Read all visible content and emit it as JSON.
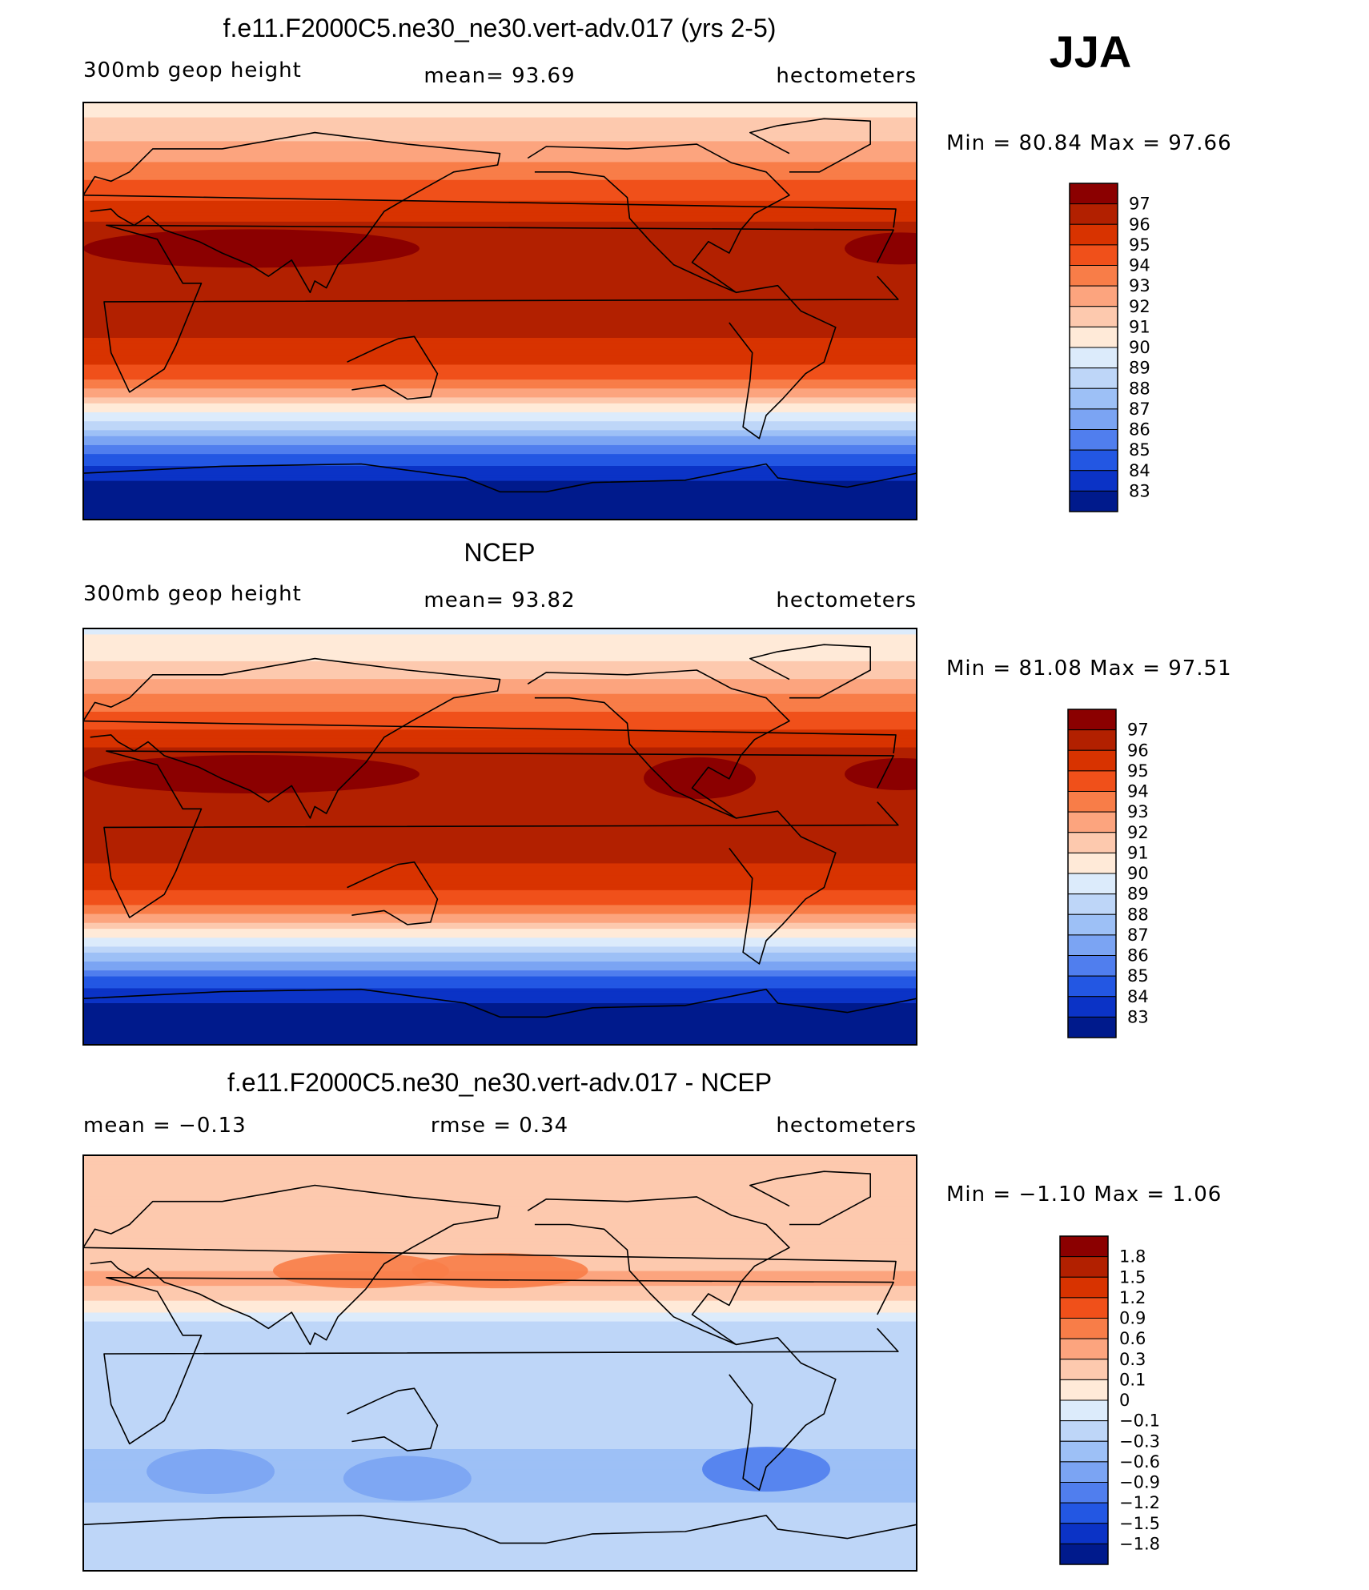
{
  "season": "JJA",
  "panels": [
    {
      "id": "model",
      "title": "f.e11.F2000C5.ne30_ne30.vert-adv.017 (yrs 2-5)",
      "left_label": "300mb  geop  height",
      "center_label": "mean=   93.69",
      "right_label": "hectometers",
      "minmax": "Min  =    80.84  Max  =    97.66",
      "colorbar": {
        "labels": [
          "97",
          "96",
          "95",
          "94",
          "93",
          "92",
          "91",
          "90",
          "89",
          "88",
          "87",
          "86",
          "85",
          "84",
          "83"
        ],
        "colors": [
          "#8B0000",
          "#B22000",
          "#D83300",
          "#F0501A",
          "#F87D48",
          "#FCA47E",
          "#FDC9AE",
          "#FFEAD8",
          "#DCEBFB",
          "#BED6F8",
          "#9DC0F6",
          "#7BA4F3",
          "#507EEE",
          "#2357E3",
          "#0B33C6",
          "#001A8C"
        ]
      },
      "chart_data": {
        "type": "heatmap",
        "title": "f.e11.F2000C5.ne30_ne30.vert-adv.017 (yrs 2-5)",
        "variable": "300mb  geop  height",
        "units": "hectometers",
        "mean": 93.69,
        "min": 80.84,
        "max": 97.66,
        "levels": [
          83,
          84,
          85,
          86,
          87,
          88,
          89,
          90,
          91,
          92,
          93,
          94,
          95,
          96,
          97
        ],
        "colors_low_to_high": [
          "#001A8C",
          "#0B33C6",
          "#2357E3",
          "#507EEE",
          "#7BA4F3",
          "#9DC0F6",
          "#BED6F8",
          "#DCEBFB",
          "#FFEAD8",
          "#FDC9AE",
          "#FCA47E",
          "#F87D48",
          "#F0501A",
          "#D83300",
          "#B22000",
          "#8B0000"
        ],
        "colorbar_labels": [
          "97",
          "96",
          "95",
          "94",
          "93",
          "92",
          "91",
          "90",
          "89",
          "88",
          "87",
          "86",
          "85",
          "84",
          "83"
        ],
        "profile_lat": [
          90,
          80,
          70,
          60,
          50,
          40,
          30,
          20,
          10,
          0,
          -10,
          -20,
          -30,
          -40,
          -50,
          -60,
          -70,
          -80,
          -90
        ],
        "profile_values": [
          90.6,
          91.2,
          92.3,
          93.6,
          94.8,
          95.9,
          96.5,
          96.6,
          96.6,
          96.4,
          96.1,
          95.5,
          94.0,
          91.0,
          88.3,
          85.3,
          83.3,
          82.3,
          81.5
        ],
        "map": "cylindrical equidistant, centered 180"
      }
    },
    {
      "id": "obs",
      "title": "NCEP",
      "left_label": "300mb  geop  height",
      "center_label": "mean=   93.82",
      "right_label": "hectometers",
      "minmax": "Min  =    81.08  Max  =    97.51",
      "colorbar": {
        "labels": [
          "97",
          "96",
          "95",
          "94",
          "93",
          "92",
          "91",
          "90",
          "89",
          "88",
          "87",
          "86",
          "85",
          "84",
          "83"
        ],
        "colors": [
          "#8B0000",
          "#B22000",
          "#D83300",
          "#F0501A",
          "#F87D48",
          "#FCA47E",
          "#FDC9AE",
          "#FFEAD8",
          "#DCEBFB",
          "#BED6F8",
          "#9DC0F6",
          "#7BA4F3",
          "#507EEE",
          "#2357E3",
          "#0B33C6",
          "#001A8C"
        ]
      },
      "chart_data": {
        "type": "heatmap",
        "title": "NCEP",
        "variable": "300mb  geop  height",
        "units": "hectometers",
        "mean": 93.82,
        "min": 81.08,
        "max": 97.51,
        "levels": [
          83,
          84,
          85,
          86,
          87,
          88,
          89,
          90,
          91,
          92,
          93,
          94,
          95,
          96,
          97
        ],
        "colors_low_to_high": [
          "#001A8C",
          "#0B33C6",
          "#2357E3",
          "#507EEE",
          "#7BA4F3",
          "#9DC0F6",
          "#BED6F8",
          "#DCEBFB",
          "#FFEAD8",
          "#FDC9AE",
          "#FCA47E",
          "#F87D48",
          "#F0501A",
          "#D83300",
          "#B22000",
          "#8B0000"
        ],
        "colorbar_labels": [
          "97",
          "96",
          "95",
          "94",
          "93",
          "92",
          "91",
          "90",
          "89",
          "88",
          "87",
          "86",
          "85",
          "84",
          "83"
        ],
        "profile_lat": [
          90,
          80,
          70,
          60,
          50,
          40,
          30,
          20,
          10,
          0,
          -10,
          -20,
          -30,
          -40,
          -50,
          -60,
          -70,
          -80,
          -90
        ],
        "profile_values": [
          89.8,
          90.5,
          91.8,
          93.2,
          94.6,
          95.9,
          96.9,
          96.8,
          96.6,
          96.4,
          96.1,
          95.5,
          94.0,
          91.0,
          88.2,
          85.2,
          83.2,
          82.2,
          81.3
        ],
        "map": "cylindrical equidistant, centered 180"
      }
    },
    {
      "id": "diff",
      "title": "f.e11.F2000C5.ne30_ne30.vert-adv.017 - NCEP",
      "left_label": "mean  =    −0.13",
      "center_label": "rmse  =     0.34",
      "right_label": "hectometers",
      "minmax": "Min  =    −1.10  Max  =      1.06",
      "colorbar": {
        "labels": [
          "1.8",
          "1.5",
          "1.2",
          "0.9",
          "0.6",
          "0.3",
          "0.1",
          "0",
          "−0.1",
          "−0.3",
          "−0.6",
          "−0.9",
          "−1.2",
          "−1.5",
          "−1.8"
        ],
        "colors": [
          "#8B0000",
          "#B22000",
          "#D83300",
          "#F0501A",
          "#F87D48",
          "#FCA47E",
          "#FDC9AE",
          "#FFEAD8",
          "#DCEBFB",
          "#BED6F8",
          "#9DC0F6",
          "#7BA4F3",
          "#507EEE",
          "#2357E3",
          "#0B33C6",
          "#001A8C"
        ]
      },
      "chart_data": {
        "type": "heatmap",
        "title": "f.e11.F2000C5.ne30_ne30.vert-adv.017 - NCEP",
        "units": "hectometers",
        "mean": -0.13,
        "rmse": 0.34,
        "min": -1.1,
        "max": 1.06,
        "levels": [
          -1.8,
          -1.5,
          -1.2,
          -0.9,
          -0.6,
          -0.3,
          -0.1,
          0,
          0.1,
          0.3,
          0.6,
          0.9,
          1.2,
          1.5,
          1.8
        ],
        "colors_low_to_high": [
          "#001A8C",
          "#0B33C6",
          "#2357E3",
          "#507EEE",
          "#7BA4F3",
          "#9DC0F6",
          "#BED6F8",
          "#DCEBFB",
          "#FFEAD8",
          "#FDC9AE",
          "#FCA47E",
          "#F87D48",
          "#F0501A",
          "#D83300",
          "#B22000",
          "#8B0000"
        ],
        "colorbar_labels": [
          "1.8",
          "1.5",
          "1.2",
          "0.9",
          "0.6",
          "0.3",
          "0.1",
          "0",
          "−0.1",
          "−0.3",
          "−0.6",
          "−0.9",
          "−1.2",
          "−1.5",
          "−1.8"
        ],
        "profile_lat": [
          90,
          75,
          60,
          45,
          35,
          25,
          15,
          0,
          -15,
          -30,
          -45,
          -60,
          -75,
          -90
        ],
        "profile_values": [
          0.15,
          0.2,
          0.3,
          0.25,
          0.35,
          0.05,
          -0.15,
          -0.2,
          -0.2,
          -0.25,
          -0.35,
          -0.3,
          -0.25,
          -0.2
        ],
        "features": [
          {
            "label": "max",
            "lat": 40,
            "lon": 180,
            "value": 0.7
          },
          {
            "label": "max",
            "lat": 40,
            "lon": 120,
            "value": 0.65
          },
          {
            "label": "min",
            "lat": -46,
            "lon": 295,
            "value": -1.1
          },
          {
            "label": "min",
            "lat": -47,
            "lon": 55,
            "value": -0.9
          },
          {
            "label": "min",
            "lat": -50,
            "lon": 140,
            "value": -0.7
          }
        ],
        "map": "cylindrical equidistant, centered 180"
      }
    }
  ]
}
